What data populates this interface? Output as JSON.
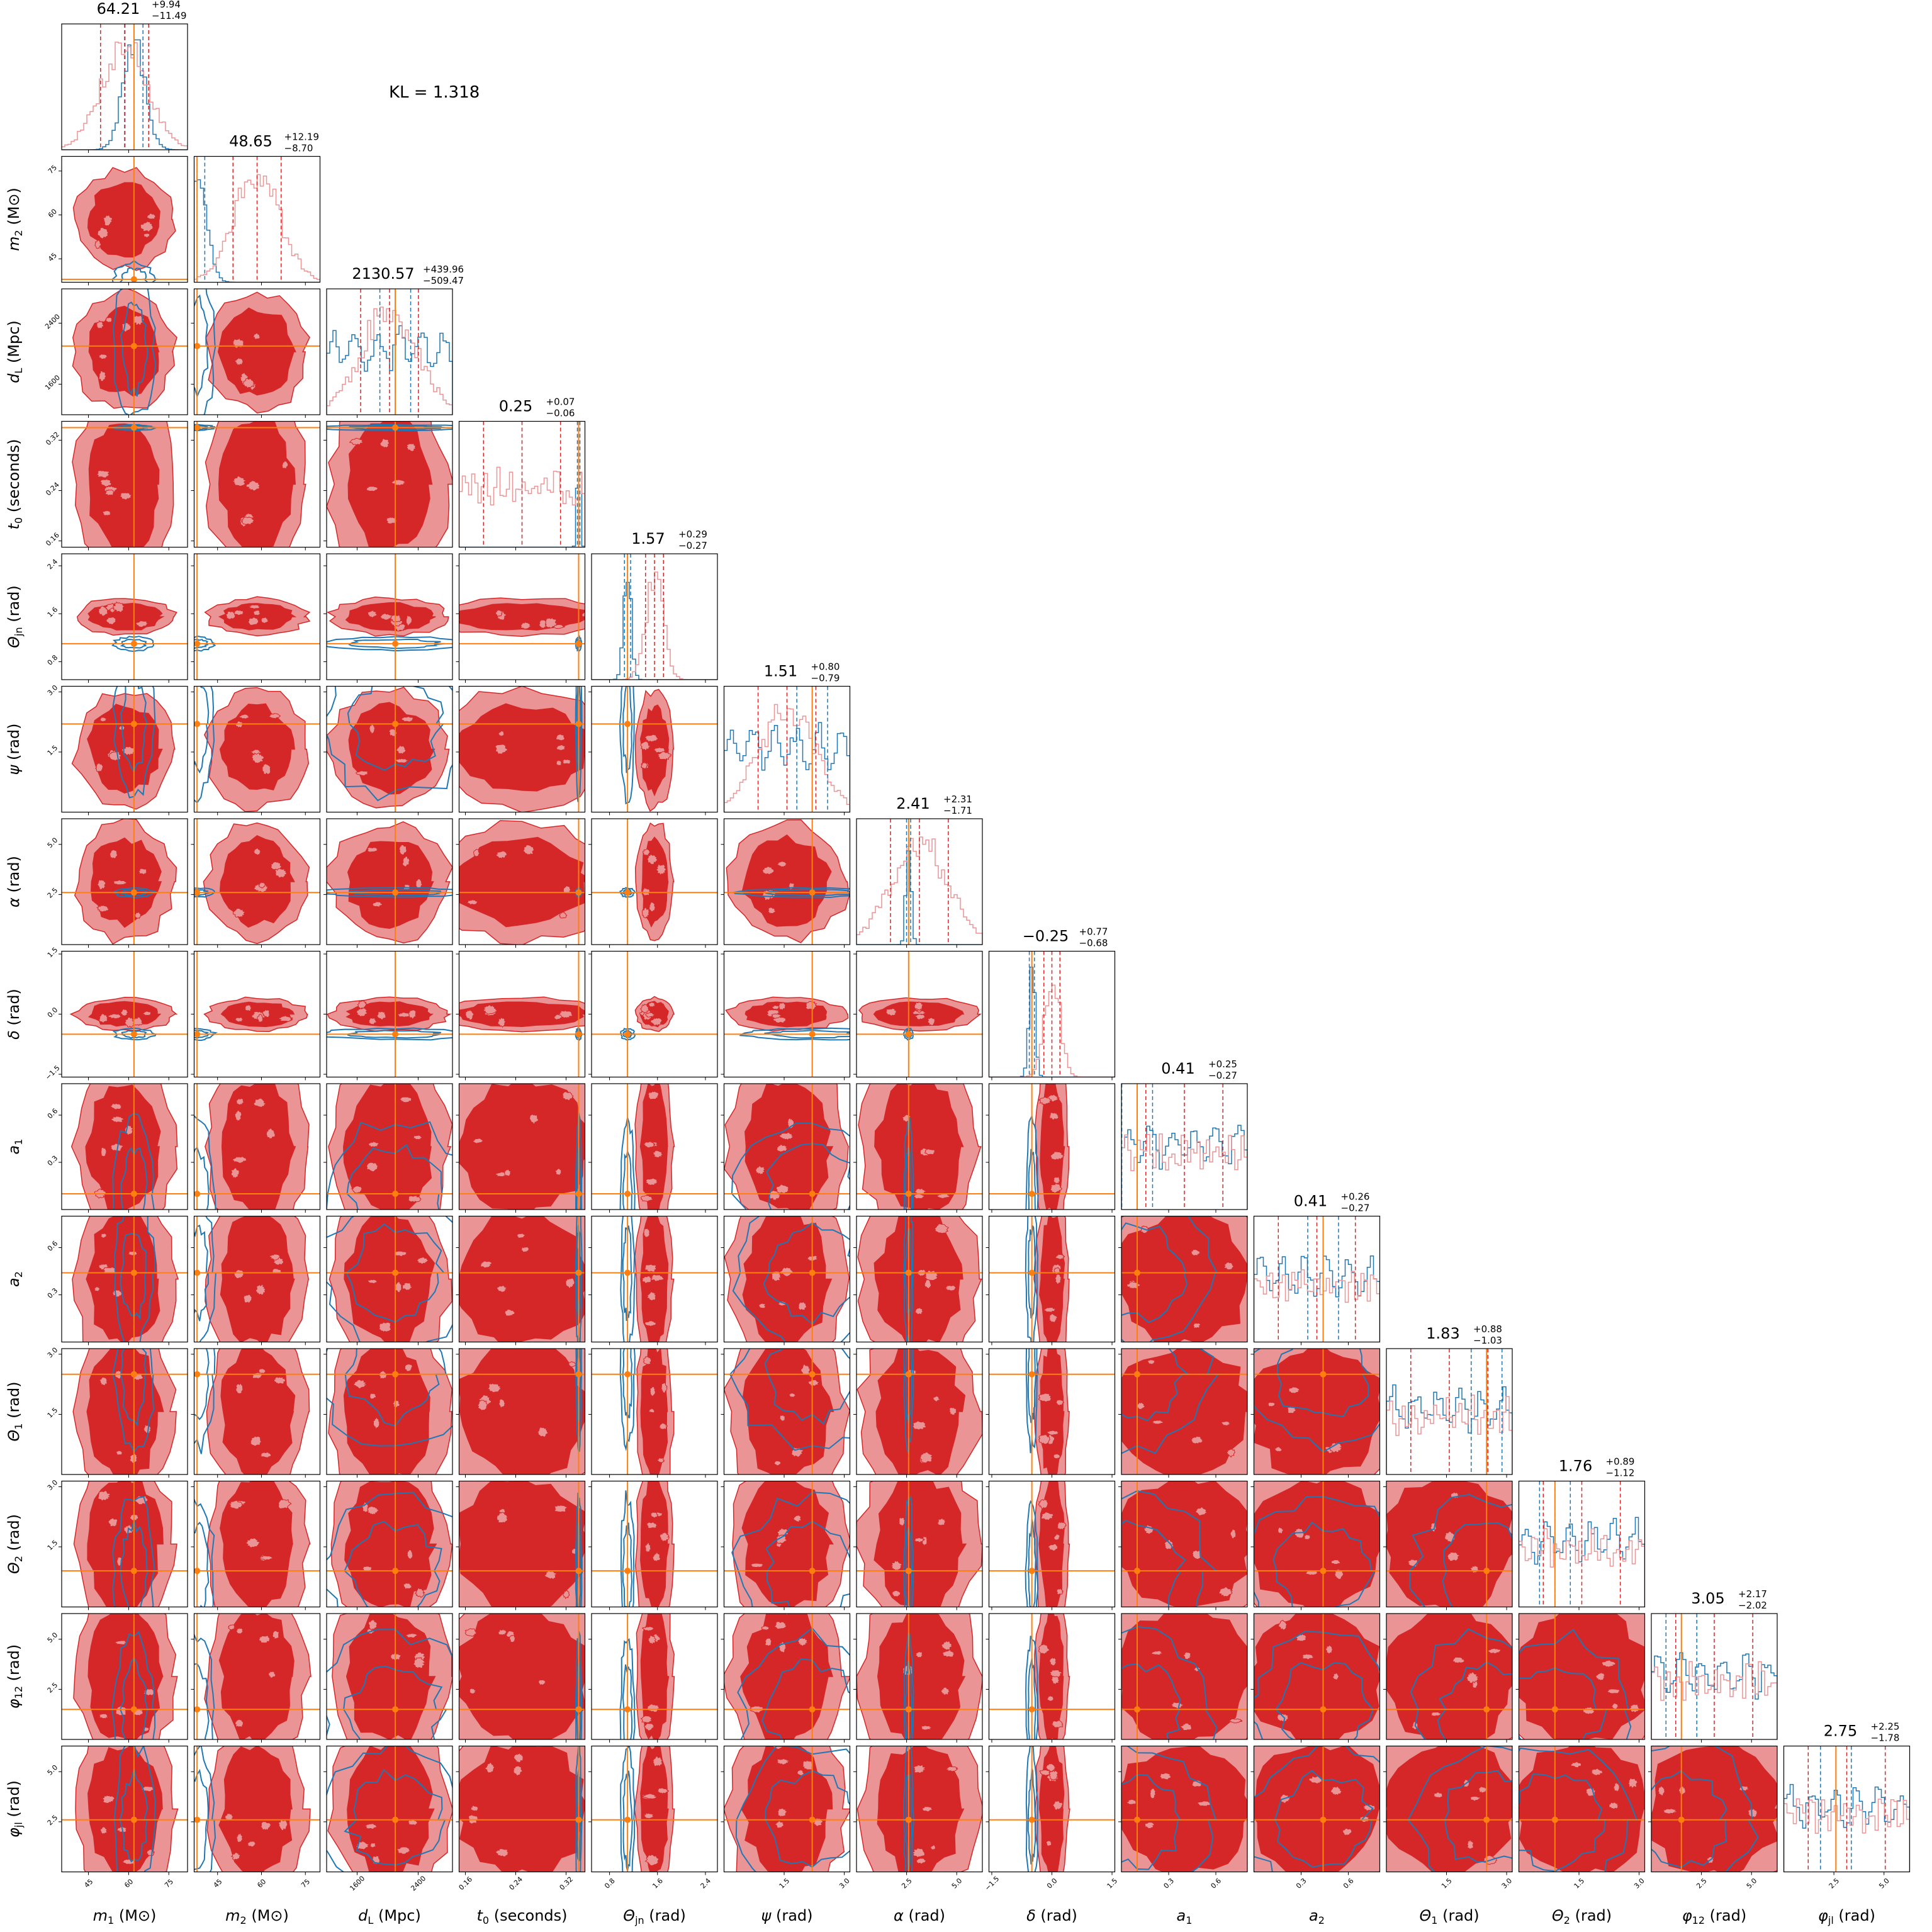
{
  "chart_data": {
    "type": "corner",
    "annotation": "KL = 1.318",
    "colors": {
      "series_red": "#d62728",
      "series_red_light": "#ea9496",
      "series_blue": "#1f77b4",
      "truth": "#ff7f0e"
    },
    "parameters": [
      {
        "id": "m1",
        "label_tex": "m_1 (M_⊙)",
        "label_main": "m",
        "label_sub": "1",
        "label_unit": " (M⊙)",
        "median": "64.21",
        "plus": "+9.94",
        "minus": "−11.49",
        "range": [
          35,
          82
        ],
        "ticks": [
          "45",
          "60",
          "75"
        ],
        "truth": 62
      },
      {
        "id": "m2",
        "label_tex": "m_2 (M_⊙)",
        "label_main": "m",
        "label_sub": "2",
        "label_unit": " (M⊙)",
        "median": "48.65",
        "plus": "+12.19",
        "minus": "−8.70",
        "range": [
          37,
          80
        ],
        "ticks": [
          "45",
          "60",
          "75"
        ],
        "truth": 38
      },
      {
        "id": "dL",
        "label_tex": "d_L (Mpc)",
        "label_main": "d",
        "label_sub": "L",
        "label_unit": " (Mpc)",
        "median": "2130.57",
        "plus": "+439.96",
        "minus": "−509.47",
        "range": [
          1200,
          2850
        ],
        "ticks": [
          "1600",
          "2400"
        ],
        "truth": 2100
      },
      {
        "id": "t0",
        "label_tex": "t_0 (seconds)",
        "label_main": "t",
        "label_sub": "0",
        "label_unit": " (seconds)",
        "median": "0.25",
        "plus": "+0.07",
        "minus": "−0.06",
        "range": [
          0.15,
          0.35
        ],
        "ticks": [
          "0.16",
          "0.24",
          "0.32"
        ],
        "truth": 0.34
      },
      {
        "id": "theta_jn",
        "label_tex": "Θ_jn (rad)",
        "label_main": "Θ",
        "label_sub": "jn",
        "label_unit": " (rad)",
        "median": "1.57",
        "plus": "+0.29",
        "minus": "−0.27",
        "range": [
          0.5,
          2.6
        ],
        "ticks": [
          "0.8",
          "1.6",
          "2.4"
        ],
        "truth": 1.1
      },
      {
        "id": "psi",
        "label_tex": "ψ (rad)",
        "label_main": "ψ",
        "label_sub": "",
        "label_unit": " (rad)",
        "median": "1.51",
        "plus": "+0.80",
        "minus": "−0.79",
        "range": [
          0,
          3.14
        ],
        "ticks": [
          "1.5",
          "3.0"
        ],
        "truth": 2.2
      },
      {
        "id": "alpha",
        "label_tex": "α (rad)",
        "label_main": "α",
        "label_sub": "",
        "label_unit": " (rad)",
        "median": "2.41",
        "plus": "+2.31",
        "minus": "−1.71",
        "range": [
          0,
          6.28
        ],
        "ticks": [
          "2.5",
          "5.0"
        ],
        "truth": 2.6
      },
      {
        "id": "delta",
        "label_tex": "δ (rad)",
        "label_main": "δ",
        "label_sub": "",
        "label_unit": " (rad)",
        "median": "−0.25",
        "plus": "+0.77",
        "minus": "−0.68",
        "range": [
          -1.57,
          1.57
        ],
        "ticks": [
          "−1.5",
          "0.0",
          "1.5"
        ],
        "truth": -0.5
      },
      {
        "id": "a1",
        "label_tex": "a_1",
        "label_main": "a",
        "label_sub": "1",
        "label_unit": "",
        "median": "0.41",
        "plus": "+0.25",
        "minus": "−0.27",
        "range": [
          0,
          0.8
        ],
        "ticks": [
          "0.3",
          "0.6"
        ],
        "truth": 0.1
      },
      {
        "id": "a2",
        "label_tex": "a_2",
        "label_main": "a",
        "label_sub": "2",
        "label_unit": "",
        "median": "0.41",
        "plus": "+0.26",
        "minus": "−0.27",
        "range": [
          0,
          0.8
        ],
        "ticks": [
          "0.3",
          "0.6"
        ],
        "truth": 0.44
      },
      {
        "id": "theta1",
        "label_tex": "Θ_1 (rad)",
        "label_main": "Θ",
        "label_sub": "1",
        "label_unit": " (rad)",
        "median": "1.83",
        "plus": "+0.88",
        "minus": "−1.03",
        "range": [
          0,
          3.14
        ],
        "ticks": [
          "1.5",
          "3.0"
        ],
        "truth": 2.5
      },
      {
        "id": "theta2",
        "label_tex": "Θ_2 (rad)",
        "label_main": "Θ",
        "label_sub": "2",
        "label_unit": " (rad)",
        "median": "1.76",
        "plus": "+0.89",
        "minus": "−1.12",
        "range": [
          0,
          3.14
        ],
        "ticks": [
          "1.5",
          "3.0"
        ],
        "truth": 0.9
      },
      {
        "id": "phi12",
        "label_tex": "φ_12 (rad)",
        "label_main": "φ",
        "label_sub": "12",
        "label_unit": " (rad)",
        "median": "3.05",
        "plus": "+2.17",
        "minus": "−2.02",
        "range": [
          0,
          6.28
        ],
        "ticks": [
          "2.5",
          "5.0"
        ],
        "truth": 1.5
      },
      {
        "id": "phijl",
        "label_tex": "φ_jl (rad)",
        "label_main": "φ",
        "label_sub": "jl",
        "label_unit": " (rad)",
        "median": "2.75",
        "plus": "+2.25",
        "minus": "−1.78",
        "range": [
          0,
          6.28
        ],
        "ticks": [
          "2.5",
          "5.0"
        ],
        "truth": 2.6
      }
    ]
  }
}
